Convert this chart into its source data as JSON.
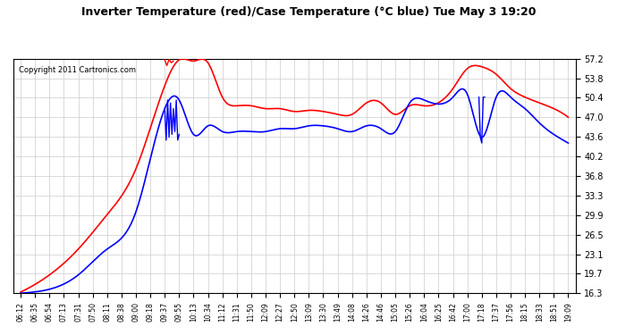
{
  "title": "Inverter Temperature (red)/Case Temperature (°C blue) Tue May 3 19:20",
  "copyright": "Copyright 2011 Cartronics.com",
  "yticks": [
    16.3,
    19.7,
    23.1,
    26.5,
    29.9,
    33.3,
    36.8,
    40.2,
    43.6,
    47.0,
    50.4,
    53.8,
    57.2
  ],
  "ymin": 16.3,
  "ymax": 57.2,
  "background_color": "#ffffff",
  "grid_color": "#cccccc",
  "xtick_labels": [
    "06:12",
    "06:35",
    "06:54",
    "07:13",
    "07:31",
    "07:50",
    "08:11",
    "08:38",
    "09:00",
    "09:18",
    "09:37",
    "09:55",
    "10:13",
    "10:34",
    "11:12",
    "11:31",
    "11:50",
    "12:09",
    "12:27",
    "12:50",
    "13:09",
    "13:30",
    "13:49",
    "14:08",
    "14:26",
    "14:46",
    "15:05",
    "15:26",
    "16:04",
    "16:25",
    "16:42",
    "17:00",
    "17:18",
    "17:37",
    "17:56",
    "18:15",
    "18:33",
    "18:51",
    "19:09"
  ],
  "red_curve_key_points_x": [
    0,
    2,
    4,
    6,
    8,
    10,
    11,
    12,
    13,
    14,
    15,
    16,
    17,
    18,
    19,
    20,
    21,
    22,
    23,
    24,
    25,
    26,
    27,
    28,
    30,
    31,
    32,
    33,
    34,
    35,
    36,
    37,
    38
  ],
  "red_curve_key_points_y": [
    16.5,
    19.5,
    24.0,
    30.0,
    38.0,
    52.5,
    57.0,
    56.8,
    56.5,
    50.5,
    49.0,
    49.0,
    48.5,
    48.5,
    48.0,
    48.2,
    48.0,
    47.5,
    47.5,
    49.5,
    49.5,
    47.5,
    49.0,
    49.0,
    52.0,
    55.5,
    55.8,
    54.5,
    52.0,
    50.5,
    49.5,
    48.5,
    47.0
  ],
  "blue_curve_key_points_x": [
    0,
    2,
    4,
    6,
    8,
    10,
    11,
    12,
    13,
    14,
    15,
    16,
    17,
    18,
    19,
    20,
    21,
    22,
    23,
    24,
    25,
    26,
    27,
    28,
    30,
    31,
    32,
    33,
    34,
    35,
    36,
    37,
    38
  ],
  "blue_curve_key_points_y": [
    16.3,
    17.0,
    19.5,
    24.0,
    30.5,
    48.5,
    50.0,
    44.0,
    45.5,
    44.5,
    44.5,
    44.5,
    44.5,
    45.0,
    45.0,
    45.5,
    45.5,
    45.0,
    44.5,
    45.5,
    45.0,
    44.5,
    49.5,
    50.0,
    50.5,
    51.0,
    43.5,
    50.5,
    50.5,
    48.5,
    46.0,
    44.0,
    42.5
  ]
}
